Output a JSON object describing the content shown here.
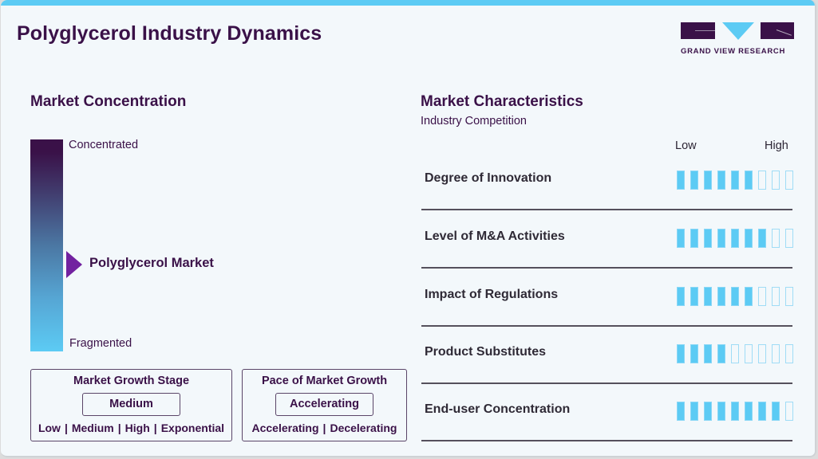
{
  "header": {
    "title": "Polyglycerol Industry Dynamics",
    "logo_text": "GRAND VIEW RESEARCH",
    "accent_color": "#5ccbf4",
    "brand_color": "#3a1148"
  },
  "market_concentration": {
    "heading": "Market Concentration",
    "top_label": "Concentrated",
    "bottom_label": "Fragmented",
    "marker_label": "Polyglycerol Market",
    "marker_color": "#7222a0"
  },
  "growth_stage": {
    "title": "Market Growth Stage",
    "value": "Medium",
    "options": [
      "Low",
      "Medium",
      "High",
      "Exponential"
    ]
  },
  "growth_pace": {
    "title": "Pace of Market Growth",
    "value": "Accelerating",
    "options": [
      "Accelerating",
      "Decelerating"
    ]
  },
  "market_characteristics": {
    "heading": "Market Characteristics",
    "subheading": "Industry Competition",
    "scale_low": "Low",
    "scale_high": "High",
    "scale_max": 9,
    "items": [
      {
        "label": "Degree of Innovation",
        "level": 6
      },
      {
        "label": "Level of M&A Activities",
        "level": 7
      },
      {
        "label": "Impact of Regulations",
        "level": 6
      },
      {
        "label": "Product Substitutes",
        "level": 4
      },
      {
        "label": "End-user Concentration",
        "level": 8
      }
    ]
  },
  "chart_data": {
    "type": "bar",
    "title": "Market Characteristics - Industry Competition",
    "categories": [
      "Degree of Innovation",
      "Level of M&A Activities",
      "Impact of Regulations",
      "Product Substitutes",
      "End-user Concentration"
    ],
    "values": [
      6,
      7,
      6,
      4,
      8
    ],
    "xlabel": "",
    "ylabel": "Low to High",
    "ylim": [
      0,
      9
    ]
  }
}
